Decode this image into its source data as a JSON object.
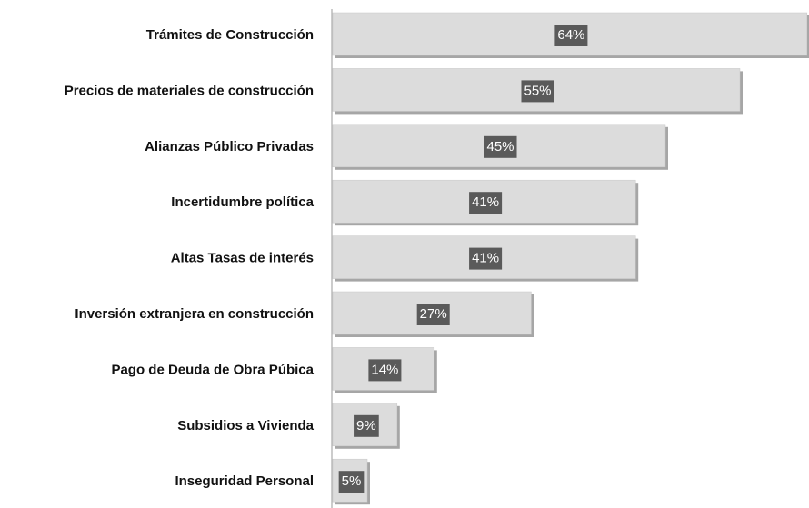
{
  "chart_data": {
    "type": "bar",
    "orientation": "horizontal",
    "categories": [
      "Trámites de Construcción",
      "Precios de materiales de construcción",
      "Alianzas Público Privadas",
      "Incertidumbre política",
      "Altas Tasas de interés",
      "Inversión extranjera en construcción",
      "Pago de Deuda de Obra Púbica",
      "Subsidios a Vivienda",
      "Inseguridad Personal"
    ],
    "values": [
      64,
      55,
      45,
      41,
      41,
      27,
      14,
      9,
      5
    ],
    "value_labels": [
      "64%",
      "55%",
      "45%",
      "41%",
      "41%",
      "27%",
      "14%",
      "9%",
      "5%"
    ],
    "color": "#dcdcdc"
  }
}
